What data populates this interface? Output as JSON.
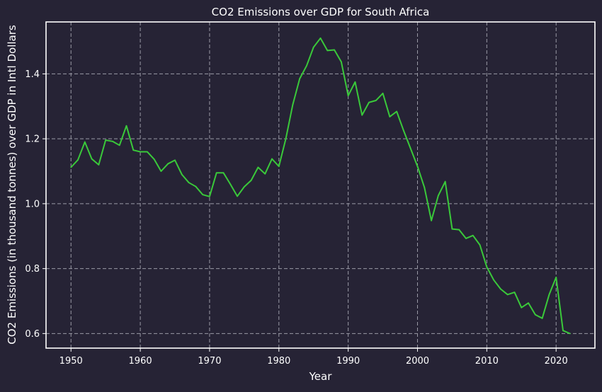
{
  "chart_data": {
    "type": "line",
    "title": "CO2 Emissions over GDP for South Africa",
    "xlabel": "Year",
    "ylabel": "CO2 Emissions (in thousand tonnes) over GDP in Intl Dollars",
    "xlim": [
      1946.4,
      2025.6
    ],
    "ylim": [
      0.555,
      1.56
    ],
    "xticks": [
      1950,
      1960,
      1970,
      1980,
      1990,
      2000,
      2010,
      2020
    ],
    "yticks": [
      0.6,
      0.8,
      1.0,
      1.2,
      1.4
    ],
    "ytick_labels": [
      "0.6",
      "0.8",
      "1.0",
      "1.2",
      "1.4"
    ],
    "grid": true,
    "series": [
      {
        "color": "#3ac93a",
        "x": [
          1950,
          1951,
          1952,
          1953,
          1954,
          1955,
          1956,
          1957,
          1958,
          1959,
          1960,
          1961,
          1962,
          1963,
          1964,
          1965,
          1966,
          1967,
          1968,
          1969,
          1970,
          1971,
          1972,
          1973,
          1974,
          1975,
          1976,
          1977,
          1978,
          1979,
          1980,
          1981,
          1982,
          1983,
          1984,
          1985,
          1986,
          1987,
          1988,
          1989,
          1990,
          1991,
          1992,
          1993,
          1994,
          1995,
          1996,
          1997,
          1998,
          1999,
          2000,
          2001,
          2002,
          2003,
          2004,
          2005,
          2006,
          2007,
          2008,
          2009,
          2010,
          2011,
          2012,
          2013,
          2014,
          2015,
          2016,
          2017,
          2018,
          2019,
          2020,
          2021,
          2022
        ],
        "y": [
          1.112,
          1.135,
          1.19,
          1.138,
          1.12,
          1.196,
          1.192,
          1.18,
          1.24,
          1.165,
          1.16,
          1.16,
          1.137,
          1.1,
          1.123,
          1.134,
          1.09,
          1.065,
          1.053,
          1.028,
          1.022,
          1.095,
          1.095,
          1.06,
          1.023,
          1.052,
          1.072,
          1.112,
          1.092,
          1.138,
          1.115,
          1.2,
          1.305,
          1.385,
          1.425,
          1.482,
          1.51,
          1.472,
          1.474,
          1.437,
          1.333,
          1.375,
          1.273,
          1.312,
          1.318,
          1.34,
          1.268,
          1.284,
          1.225,
          1.17,
          1.115,
          1.05,
          0.948,
          1.025,
          1.068,
          0.922,
          0.92,
          0.893,
          0.902,
          0.873,
          0.805,
          0.765,
          0.737,
          0.72,
          0.727,
          0.68,
          0.694,
          0.658,
          0.647,
          0.72,
          0.773,
          0.609,
          0.6
        ]
      }
    ]
  },
  "colors": {
    "background": "#262335",
    "frame": "#ffffff",
    "grid": "#9a9aa6",
    "line": "#3ac93a"
  }
}
